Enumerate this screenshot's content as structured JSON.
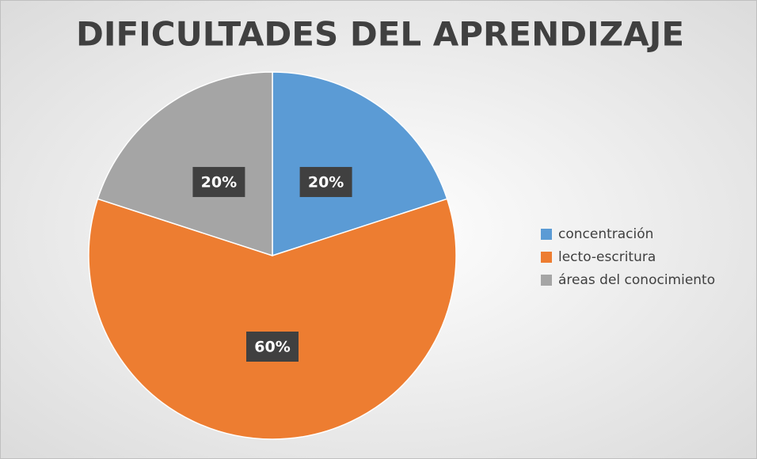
{
  "chart_data": {
    "type": "pie",
    "title": "DIFICULTADES DEL APRENDIZAJE",
    "categories": [
      "concentración",
      "lecto-escritura",
      "áreas del conocimiento"
    ],
    "values": [
      20,
      60,
      20
    ],
    "value_labels": [
      "20%",
      "60%",
      "20%"
    ],
    "colors": [
      "#5b9bd5",
      "#ed7d31",
      "#a5a5a5"
    ],
    "legend": "right"
  }
}
